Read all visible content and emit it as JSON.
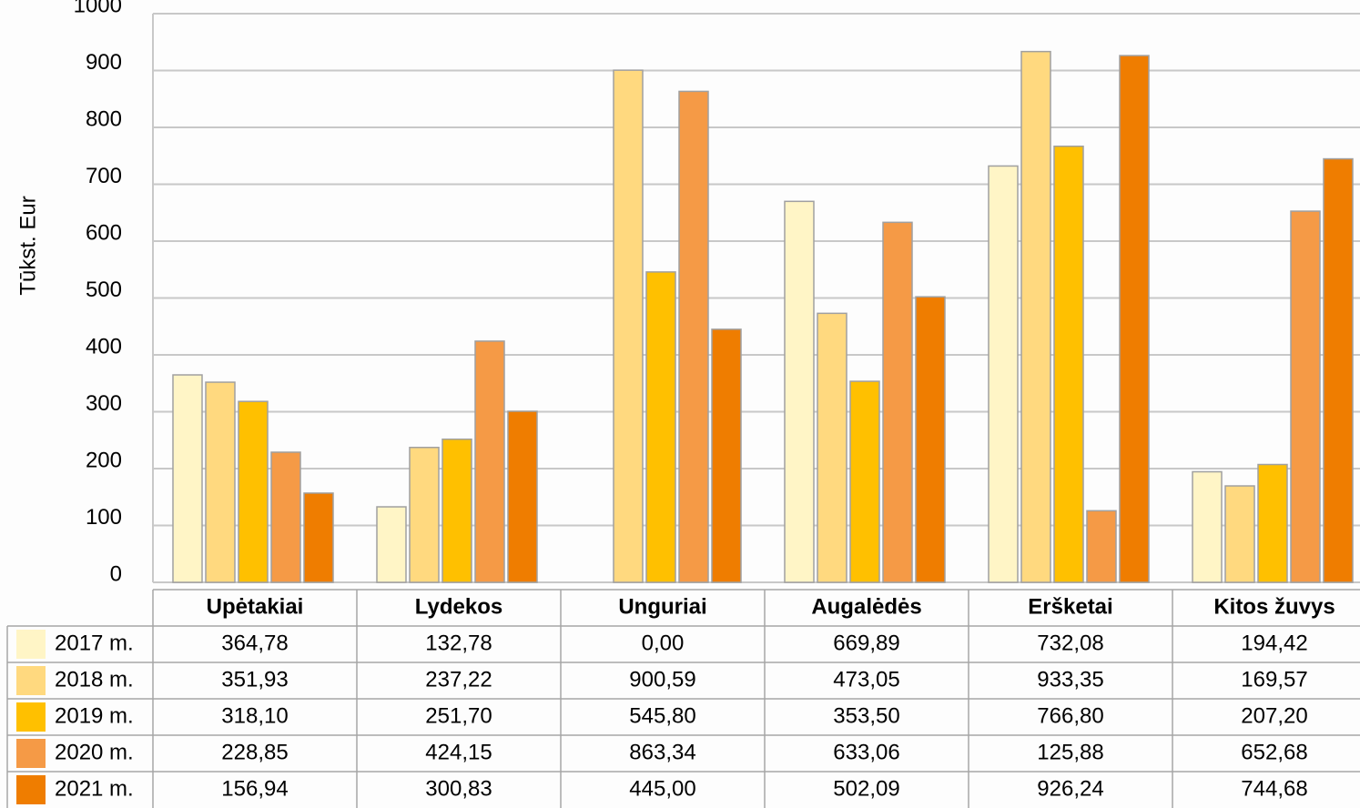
{
  "chart_data": {
    "type": "bar",
    "y_label": "Tūkst. Eur",
    "categories": [
      "Upėtakiai",
      "Lydekos",
      "Unguriai",
      "Augalėdės",
      "Eršketai",
      "Kitos žuvys"
    ],
    "series": [
      {
        "name": "2017 m.",
        "color": "#FFF5C6",
        "values": [
          364.78,
          132.78,
          0.0,
          669.89,
          732.08,
          194.42
        ],
        "value_labels": [
          "364,78",
          "132,78",
          "0,00",
          "669,89",
          "732,08",
          "194,42"
        ]
      },
      {
        "name": "2018 m.",
        "color": "#FFD97F",
        "values": [
          351.93,
          237.22,
          900.59,
          473.05,
          933.35,
          169.57
        ],
        "value_labels": [
          "351,93",
          "237,22",
          "900,59",
          "473,05",
          "933,35",
          "169,57"
        ]
      },
      {
        "name": "2019 m.",
        "color": "#FFC000",
        "values": [
          318.1,
          251.7,
          545.8,
          353.5,
          766.8,
          207.2
        ],
        "value_labels": [
          "318,10",
          "251,70",
          "545,80",
          "353,50",
          "766,80",
          "207,20"
        ]
      },
      {
        "name": "2020 m.",
        "color": "#F59A46",
        "values": [
          228.85,
          424.15,
          863.34,
          633.06,
          125.88,
          652.68
        ],
        "value_labels": [
          "228,85",
          "424,15",
          "863,34",
          "633,06",
          "125,88",
          "652,68"
        ]
      },
      {
        "name": "2021 m.",
        "color": "#EF7D00",
        "values": [
          156.94,
          300.83,
          445.0,
          502.09,
          926.24,
          744.68
        ],
        "value_labels": [
          "156,94",
          "300,83",
          "445,00",
          "502,09",
          "926,24",
          "744,68"
        ]
      }
    ],
    "ylim": [
      0,
      1000
    ],
    "yticks": [
      0,
      100,
      200,
      300,
      400,
      500,
      600,
      700,
      800,
      900,
      1000
    ],
    "grid": true
  }
}
